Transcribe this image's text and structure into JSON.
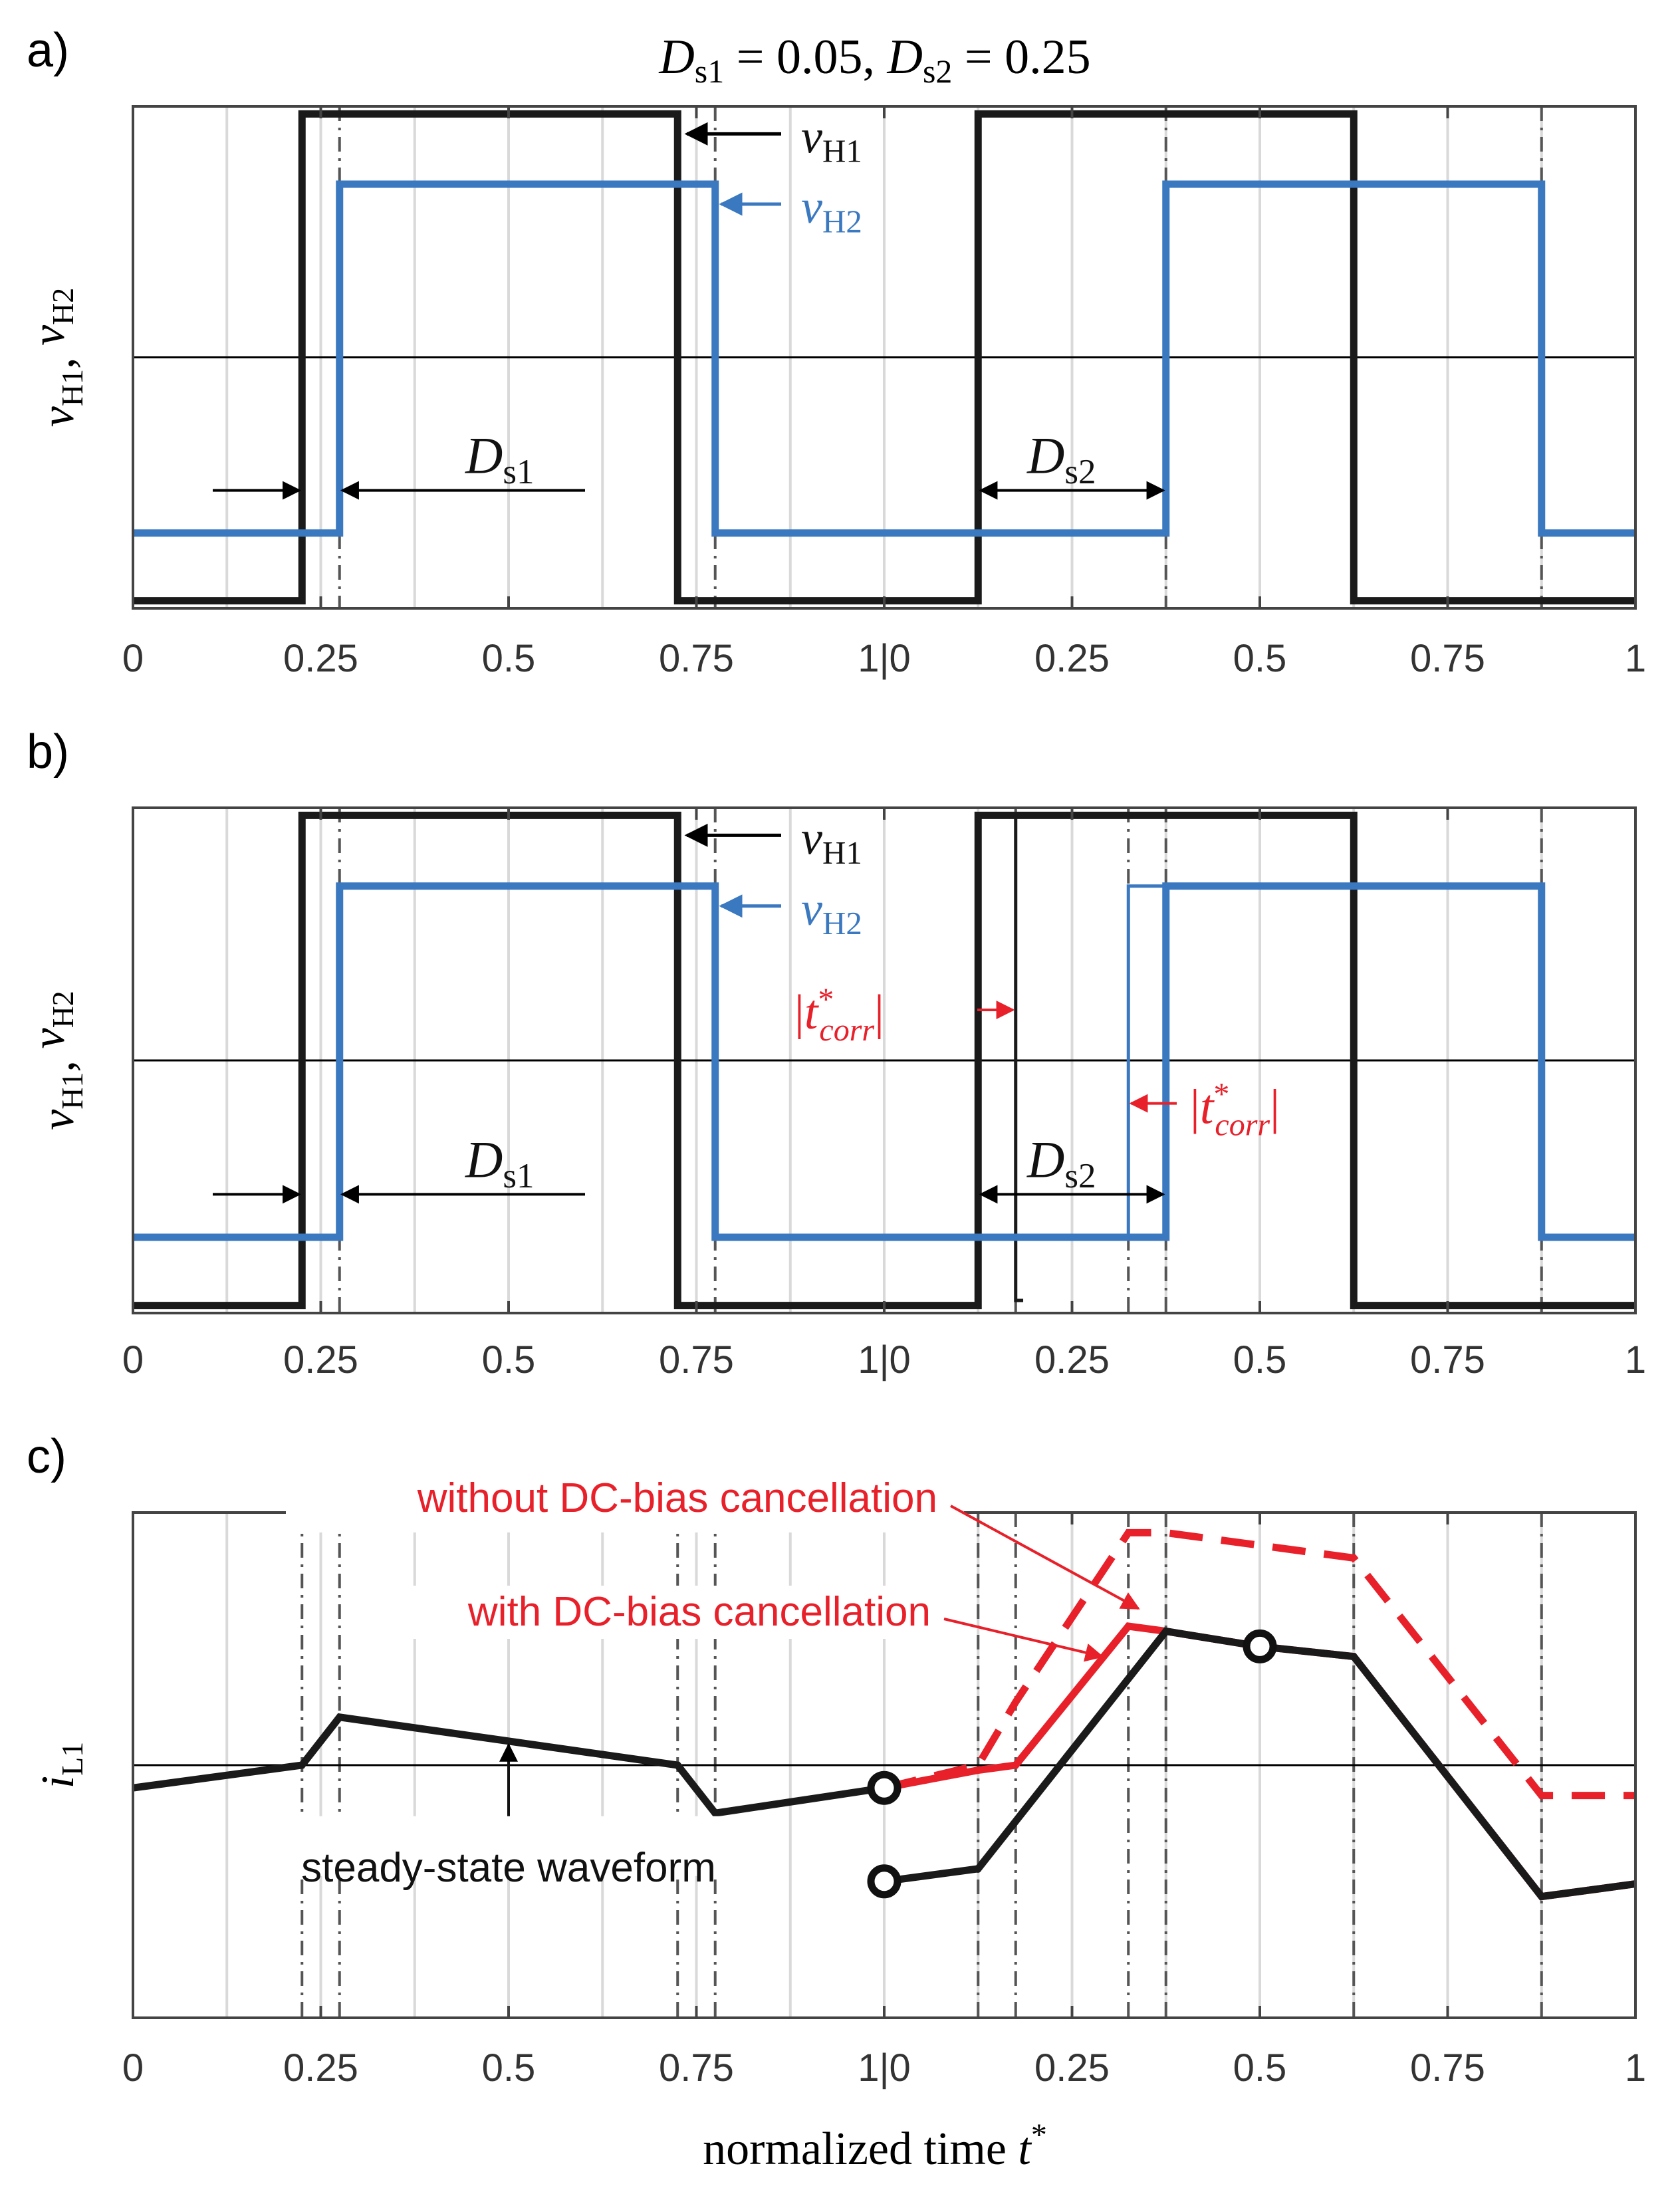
{
  "figure": {
    "title": "D<sub>s1</sub> = 0.05,  D<sub>s2</sub> = 0.25",
    "title_parts": [
      "D",
      "s1",
      " = 0.05,  ",
      "D",
      "s2",
      " = 0.25"
    ],
    "xlabel": "normalized time t*",
    "xlabel_parts": [
      "normalized time ",
      "t",
      "*"
    ]
  },
  "chart_data": [
    {
      "panel_label": "a)",
      "type": "line",
      "ylabel_parts": [
        "v",
        "H1",
        ", ",
        "v",
        "H2"
      ],
      "x_tick_labels": [
        "0",
        "0.25",
        "0.5",
        "0.75",
        "1|0",
        "0.25",
        "0.5",
        "0.75",
        "1"
      ],
      "xlim": [
        0,
        2
      ],
      "ylim": [
        -1,
        1
      ],
      "series": [
        {
          "name": "vH1",
          "label_parts": [
            "v",
            "H1"
          ],
          "color": "#1a1a1a",
          "x": [
            0,
            0.225,
            0.225,
            0.725,
            0.725,
            1.125,
            1.125,
            1.625,
            1.625,
            2
          ],
          "y": [
            -0.97,
            -0.97,
            0.97,
            0.97,
            -0.97,
            -0.97,
            0.97,
            0.97,
            -0.97,
            -0.97
          ]
        },
        {
          "name": "vH2",
          "label_parts": [
            "v",
            "H2"
          ],
          "color": "#3a78c0",
          "x": [
            0,
            0.275,
            0.275,
            0.775,
            0.775,
            1.375,
            1.375,
            1.875,
            1.875,
            2
          ],
          "y": [
            -0.7,
            -0.7,
            0.69,
            0.69,
            -0.7,
            -0.7,
            0.69,
            0.69,
            -0.7,
            -0.7
          ]
        }
      ],
      "annotations": [
        {
          "text_parts": [
            "D",
            "s1"
          ],
          "kind": "phase-shift",
          "x_from": 0.225,
          "x_to": 0.275
        },
        {
          "text_parts": [
            "D",
            "s2"
          ],
          "kind": "phase-shift",
          "x_from": 1.125,
          "x_to": 1.375
        }
      ],
      "dashdot_lines": [
        0.275,
        0.775,
        1.375,
        1.875
      ],
      "grid": true
    },
    {
      "panel_label": "b)",
      "type": "line",
      "ylabel_parts": [
        "v",
        "H1",
        ", ",
        "v",
        "H2"
      ],
      "x_tick_labels": [
        "0",
        "0.25",
        "0.5",
        "0.75",
        "1|0",
        "0.25",
        "0.5",
        "0.75",
        "1"
      ],
      "xlim": [
        0,
        2
      ],
      "ylim": [
        -1,
        1
      ],
      "series": [
        {
          "name": "vH1",
          "label_parts": [
            "v",
            "H1"
          ],
          "color": "#1a1a1a",
          "x": [
            0,
            0.225,
            0.225,
            0.725,
            0.725,
            1.125,
            1.125,
            1.625,
            1.625,
            2
          ],
          "y": [
            -0.97,
            -0.97,
            0.97,
            0.97,
            -0.97,
            -0.97,
            0.97,
            0.97,
            -0.97,
            -0.97
          ]
        },
        {
          "name": "vH1 corrected",
          "color": "#1a1a1a",
          "x": [
            1.125,
            1.175,
            1.175,
            1.185
          ],
          "y": [
            0.97,
            0.97,
            -0.95,
            -0.95
          ]
        },
        {
          "name": "vH2",
          "label_parts": [
            "v",
            "H2"
          ],
          "color": "#3a78c0",
          "x": [
            0,
            0.275,
            0.275,
            0.775,
            0.775,
            1.375,
            1.375,
            1.875,
            1.875,
            2
          ],
          "y": [
            -0.7,
            -0.7,
            0.69,
            0.69,
            -0.7,
            -0.7,
            0.69,
            0.69,
            -0.7,
            -0.7
          ]
        },
        {
          "name": "vH2 corrected",
          "color": "#3a78c0",
          "x": [
            1.325,
            1.325,
            1.375
          ],
          "y": [
            -0.7,
            0.69,
            0.69
          ]
        }
      ],
      "annotations": [
        {
          "text_parts": [
            "D",
            "s1"
          ],
          "kind": "phase-shift",
          "x_from": 0.225,
          "x_to": 0.275
        },
        {
          "text_parts": [
            "D",
            "s2"
          ],
          "kind": "phase-shift",
          "x_from": 1.125,
          "x_to": 1.375
        },
        {
          "text_parts": [
            "|",
            "t",
            "*",
            "corr",
            "|"
          ],
          "kind": "correction",
          "color": "#e8202a",
          "x": 1.175
        },
        {
          "text_parts": [
            "|",
            "t",
            "*",
            "corr",
            "|"
          ],
          "kind": "correction",
          "color": "#e8202a",
          "x": 1.325
        }
      ],
      "dashdot_lines": [
        0.275,
        0.775,
        1.175,
        1.325,
        1.375,
        1.875
      ],
      "grid": true
    },
    {
      "panel_label": "c)",
      "type": "line",
      "ylabel_parts": [
        "i",
        "L1"
      ],
      "x_tick_labels": [
        "0",
        "0.25",
        "0.5",
        "0.75",
        "1|0",
        "0.25",
        "0.5",
        "0.75",
        "1"
      ],
      "xlim": [
        0,
        2
      ],
      "ylim": [
        -1,
        1
      ],
      "series": [
        {
          "name": "steady-state waveform",
          "color": "#1a1a1a",
          "x": [
            0,
            0.225,
            0.275,
            0.725,
            0.775,
            1.0
          ],
          "y": [
            -0.09,
            0.0,
            0.19,
            0.0,
            -0.19,
            -0.09
          ]
        },
        {
          "name": "with DC-bias cancellation",
          "color": "#e8202a",
          "x": [
            1.0,
            1.125,
            1.175,
            1.325,
            1.375,
            1.5,
            1.625,
            1.875,
            2
          ],
          "y": [
            -0.09,
            -0.02,
            0.0,
            0.55,
            0.53,
            0.47,
            0.43,
            -0.52,
            -0.47
          ]
        },
        {
          "name": "without DC-bias cancellation",
          "color": "#e8202a",
          "dashed": true,
          "x": [
            1.0,
            1.125,
            1.175,
            1.325,
            1.375,
            1.625,
            1.875,
            2
          ],
          "y": [
            -0.09,
            0.0,
            0.25,
            0.92,
            0.92,
            0.82,
            -0.12,
            -0.12
          ]
        },
        {
          "name": "black response",
          "color": "#1a1a1a",
          "x": [
            1.0,
            1.125,
            1.375,
            1.5,
            1.625,
            1.875,
            2
          ],
          "y": [
            -0.46,
            -0.41,
            0.53,
            0.47,
            0.43,
            -0.52,
            -0.47
          ]
        }
      ],
      "markers": [
        {
          "x": 1.0,
          "y": -0.09
        },
        {
          "x": 1.0,
          "y": -0.46
        },
        {
          "x": 1.5,
          "y": 0.47
        }
      ],
      "annotations": [
        {
          "text": "without DC-bias cancellation",
          "color": "#e8202a"
        },
        {
          "text": "with DC-bias cancellation",
          "color": "#e8202a"
        },
        {
          "text": "steady-state waveform",
          "color": "#1a1a1a"
        }
      ],
      "dashdot_lines": [
        0.225,
        0.275,
        0.725,
        0.775,
        1.125,
        1.175,
        1.325,
        1.375,
        1.625,
        1.875
      ],
      "grid": true
    }
  ]
}
